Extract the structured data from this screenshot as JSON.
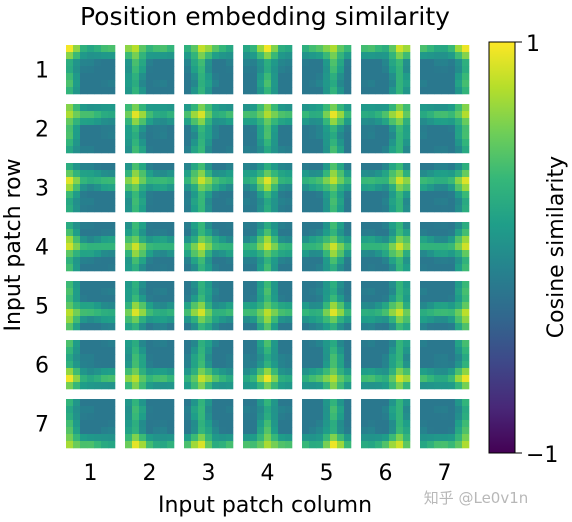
{
  "chart_data": {
    "type": "heatmap",
    "title": "Position embedding similarity",
    "xlabel": "Input patch column",
    "ylabel": "Input patch row",
    "rows": [
      "1",
      "2",
      "3",
      "4",
      "5",
      "6",
      "7"
    ],
    "columns": [
      "1",
      "2",
      "3",
      "4",
      "5",
      "6",
      "7"
    ],
    "patch_grid": 7,
    "description_of_cells": "Each small tile (row r, column c) shows cosine similarity between the position embedding of patch (r, c) and all 7x7 patch embeddings.",
    "colorbar": {
      "label": "Cosine similarity",
      "min": -1,
      "max": 1,
      "tick_labels": {
        "min": "−1",
        "max": "1"
      },
      "colormap": "viridis",
      "colors": [
        "#440154",
        "#482878",
        "#3e4989",
        "#31688e",
        "#26828e",
        "#1f9e89",
        "#35b779",
        "#6ece58",
        "#b5de2b",
        "#fde725"
      ]
    }
  },
  "watermark": "知乎 @Le0v1n"
}
